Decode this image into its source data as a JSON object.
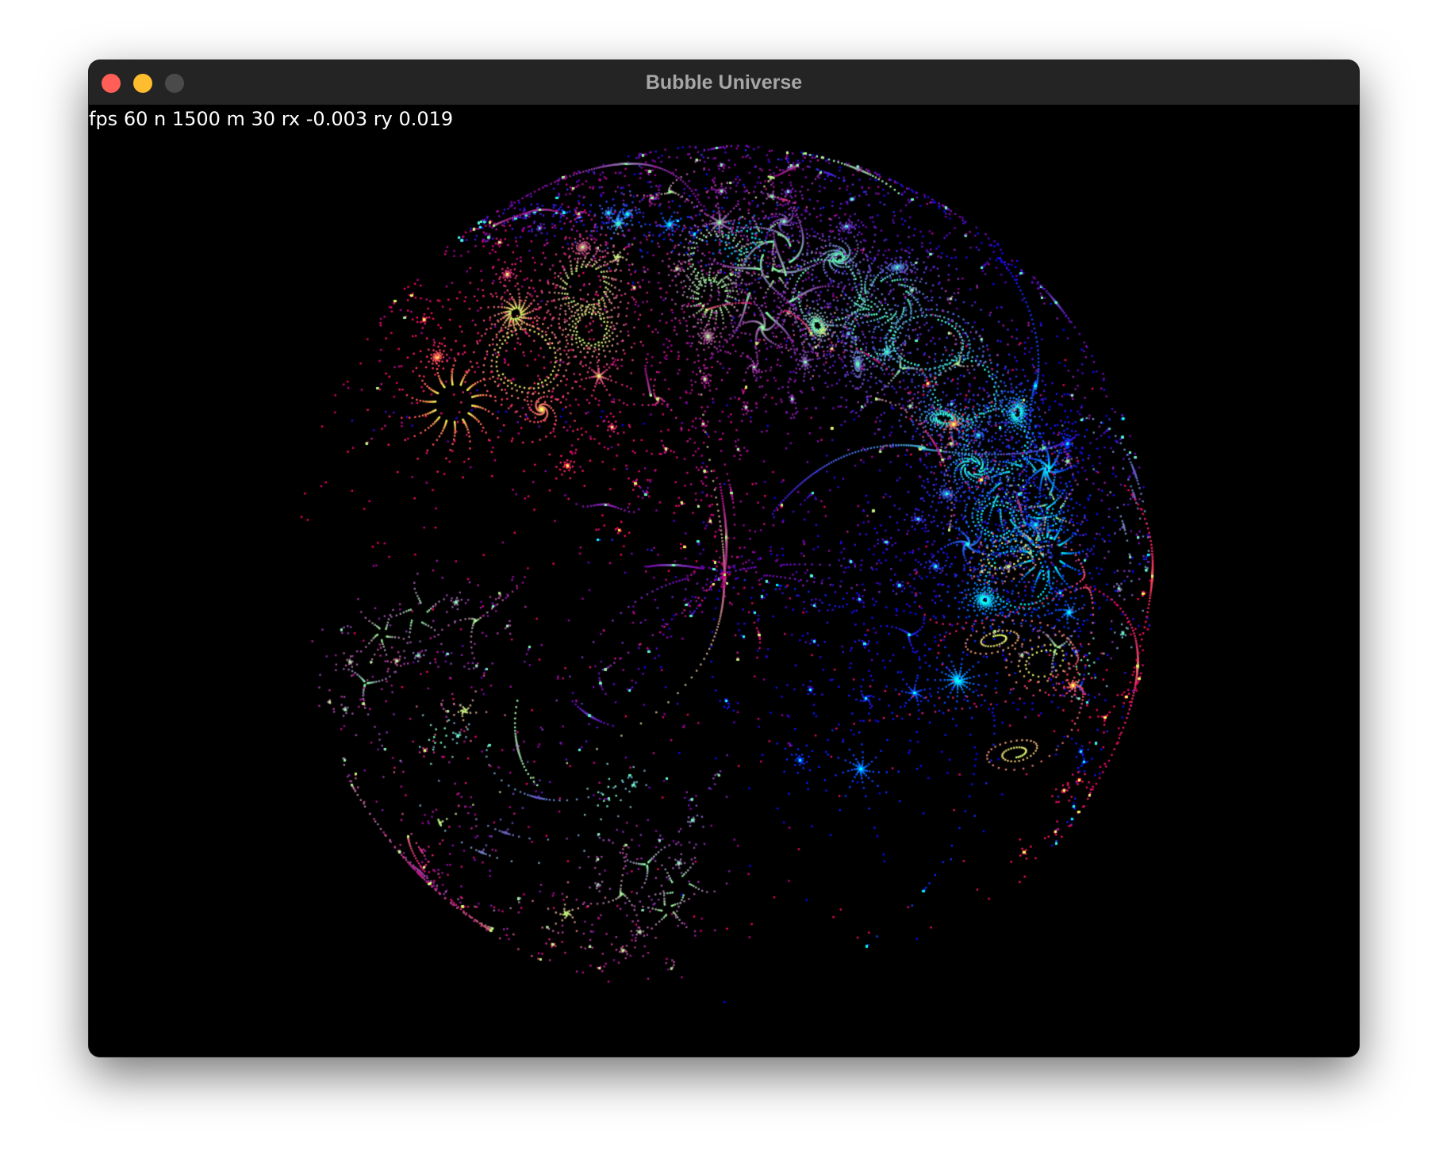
{
  "window": {
    "title": "Bubble Universe",
    "buttons": {
      "close_color": "#ff5f57",
      "minimize_color": "#febc2e",
      "zoom_color": "#4a4a4a"
    }
  },
  "overlay": {
    "stats_text": "fps 60 n 1500 m 30 rx -0.003 ry 0.019",
    "fps": 60,
    "n": 1500,
    "m": 30,
    "rx": -0.003,
    "ry": 0.019
  },
  "visualization": {
    "background": "#000000",
    "palette": "rainbow"
  }
}
